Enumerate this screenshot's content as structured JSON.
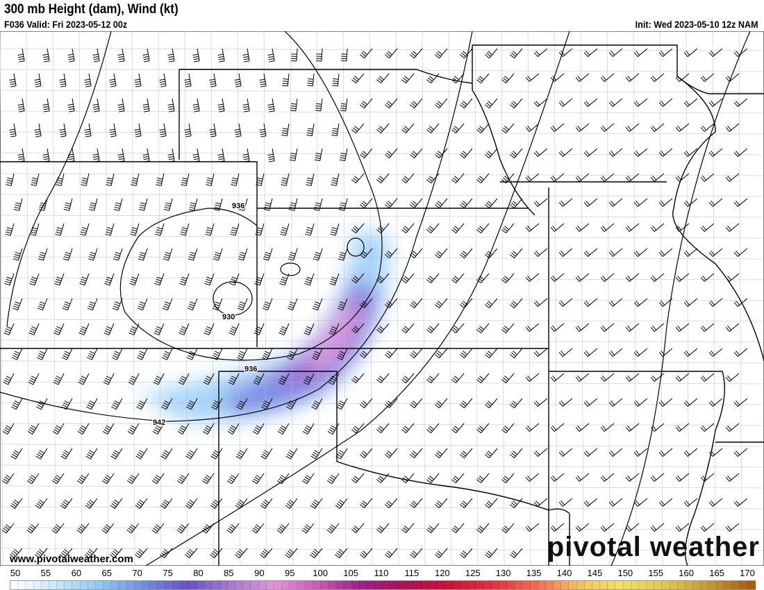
{
  "header": {
    "title": "300 mb Height (dam), Wind (kt)",
    "valid": "F036 Valid: Fri 2023-05-12 00z",
    "init": "Init: Wed 2023-05-10 12z NAM"
  },
  "contours": {
    "labels": [
      "936",
      "930",
      "936",
      "942"
    ]
  },
  "footer": {
    "site": "www.pivotalweather.com",
    "brand": "pivotal weather"
  },
  "colorbar": {
    "unit": "kt",
    "ticks": [
      "50",
      "55",
      "60",
      "65",
      "70",
      "75",
      "80",
      "85",
      "90",
      "95",
      "100",
      "105",
      "110",
      "115",
      "120",
      "125",
      "130",
      "135",
      "140",
      "145",
      "150",
      "155",
      "160",
      "165",
      "170"
    ],
    "stops": [
      "#ffffff",
      "#c6e6fa",
      "#8ccaf4",
      "#6f8fe0",
      "#6a52c6",
      "#a77ad0",
      "#e496dc",
      "#c85ab8",
      "#a0208e",
      "#b0105a",
      "#d0103a",
      "#e33040",
      "#f26a50",
      "#f6c060",
      "#f4e060",
      "#e0c850",
      "#c89a30",
      "#a86010"
    ]
  }
}
